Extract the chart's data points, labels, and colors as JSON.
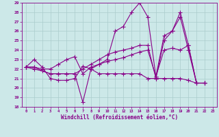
{
  "background_color": "#cce8e8",
  "grid_color": "#aacccc",
  "line_color": "#880088",
  "marker": "+",
  "markersize": 4,
  "linewidth": 0.8,
  "xlabel": "Windchill (Refroidissement éolien,°C)",
  "xlim": [
    -0.5,
    23.5
  ],
  "ylim": [
    18,
    29
  ],
  "yticks": [
    18,
    19,
    20,
    21,
    22,
    23,
    24,
    25,
    26,
    27,
    28,
    29
  ],
  "xticks": [
    0,
    1,
    2,
    3,
    4,
    5,
    6,
    7,
    8,
    9,
    10,
    11,
    12,
    13,
    14,
    15,
    16,
    17,
    18,
    19,
    20,
    21,
    22,
    23
  ],
  "lines": [
    {
      "x": [
        0,
        1,
        2,
        3,
        4,
        5,
        6,
        7,
        8,
        9,
        10,
        11,
        12,
        13,
        14,
        15,
        16,
        17,
        18,
        19,
        20,
        21,
        22
      ],
      "y": [
        22.2,
        23.0,
        22.2,
        21.0,
        20.8,
        20.8,
        21.0,
        22.3,
        22.0,
        22.5,
        23.0,
        26.0,
        26.5,
        28.0,
        29.0,
        27.5,
        21.2,
        25.5,
        26.0,
        28.0,
        24.5,
        20.5,
        20.5
      ]
    },
    {
      "x": [
        0,
        1,
        2,
        3,
        4,
        5,
        6,
        7,
        8,
        9,
        10,
        11,
        12,
        13,
        14,
        15,
        16,
        17,
        18,
        19,
        20,
        21,
        22
      ],
      "y": [
        22.2,
        22.2,
        22.0,
        22.0,
        22.5,
        23.0,
        23.3,
        21.5,
        22.2,
        22.5,
        22.8,
        23.0,
        23.2,
        23.5,
        23.8,
        24.0,
        21.2,
        24.0,
        24.2,
        24.0,
        24.5,
        20.5,
        20.5
      ]
    },
    {
      "x": [
        0,
        1,
        2,
        3,
        4,
        5,
        6,
        7,
        8,
        9,
        10,
        11,
        12,
        13,
        14,
        15,
        16,
        17,
        18,
        19,
        20,
        21,
        22
      ],
      "y": [
        22.2,
        22.2,
        21.8,
        21.5,
        21.5,
        21.5,
        21.5,
        18.5,
        22.0,
        21.5,
        21.5,
        21.5,
        21.5,
        21.5,
        21.5,
        21.0,
        21.0,
        21.0,
        21.0,
        21.0,
        20.8,
        20.5,
        20.5
      ]
    },
    {
      "x": [
        0,
        1,
        2,
        3,
        4,
        5,
        6,
        7,
        8,
        9,
        10,
        11,
        12,
        13,
        14,
        15,
        16,
        17,
        18,
        19,
        20,
        21,
        22
      ],
      "y": [
        22.2,
        22.0,
        21.8,
        21.5,
        21.5,
        21.5,
        21.5,
        22.0,
        22.5,
        23.0,
        23.5,
        23.8,
        24.0,
        24.2,
        24.5,
        24.5,
        21.0,
        25.0,
        26.0,
        27.5,
        24.0,
        20.5,
        20.5
      ]
    }
  ]
}
